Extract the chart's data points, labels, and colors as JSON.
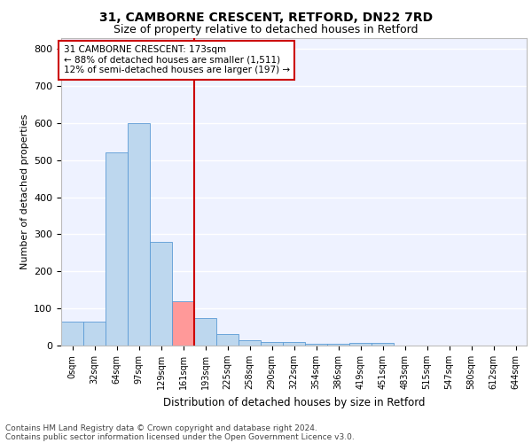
{
  "title1": "31, CAMBORNE CRESCENT, RETFORD, DN22 7RD",
  "title2": "Size of property relative to detached houses in Retford",
  "xlabel": "Distribution of detached houses by size in Retford",
  "ylabel": "Number of detached properties",
  "categories": [
    "0sqm",
    "32sqm",
    "64sqm",
    "97sqm",
    "129sqm",
    "161sqm",
    "193sqm",
    "225sqm",
    "258sqm",
    "290sqm",
    "322sqm",
    "354sqm",
    "386sqm",
    "419sqm",
    "451sqm",
    "483sqm",
    "515sqm",
    "547sqm",
    "580sqm",
    "612sqm",
    "644sqm"
  ],
  "values": [
    65,
    65,
    520,
    600,
    280,
    120,
    75,
    30,
    15,
    10,
    10,
    5,
    5,
    8,
    8,
    0,
    0,
    0,
    0,
    0,
    0
  ],
  "bar_color": "#BDD7EE",
  "bar_edge_color": "#5B9BD5",
  "highlight_bar_index": 5,
  "highlight_bar_color": "#FF9999",
  "vline_x": 5.5,
  "vline_color": "#CC0000",
  "annotation_title": "31 CAMBORNE CRESCENT: 173sqm",
  "annotation_line1": "← 88% of detached houses are smaller (1,511)",
  "annotation_line2": "12% of semi-detached houses are larger (197) →",
  "footer1": "Contains HM Land Registry data © Crown copyright and database right 2024.",
  "footer2": "Contains public sector information licensed under the Open Government Licence v3.0.",
  "ylim": [
    0,
    830
  ],
  "background_color": "#EEF2FF",
  "grid_color": "#FFFFFF",
  "title1_fontsize": 10,
  "title2_fontsize": 9,
  "xlabel_fontsize": 8.5,
  "ylabel_fontsize": 8,
  "tick_fontsize": 7,
  "footer_fontsize": 6.5,
  "annotation_fontsize": 7.5
}
